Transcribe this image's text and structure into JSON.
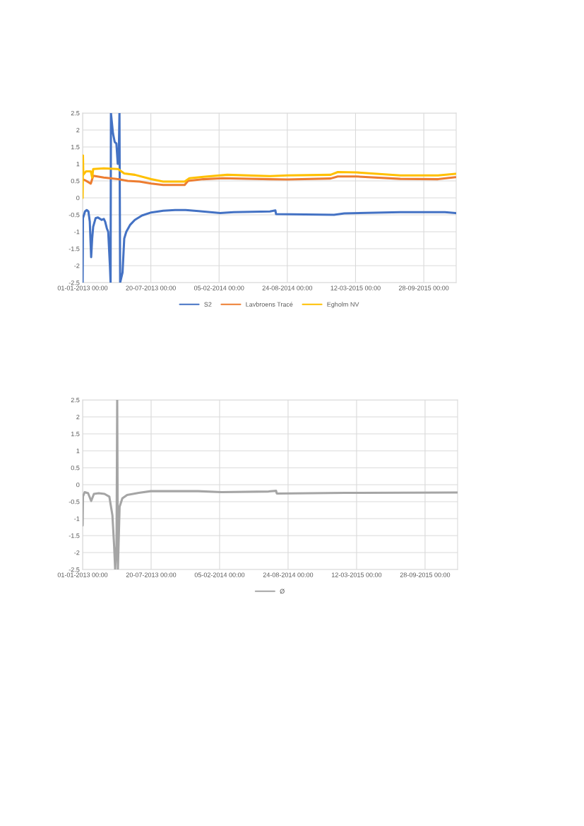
{
  "chart_data": [
    {
      "type": "line",
      "grid": true,
      "legend": "bottom",
      "line_style": "solid",
      "marker": "none",
      "xlim": [
        "2013-01-01",
        "2016-01-01"
      ],
      "xticks": [
        {
          "value": "2013-01-01",
          "label": "01-01-2013 00:00"
        },
        {
          "value": "2013-07-20",
          "label": "20-07-2013 00:00"
        },
        {
          "value": "2014-02-05",
          "label": "05-02-2014 00:00"
        },
        {
          "value": "2014-08-24",
          "label": "24-08-2014 00:00"
        },
        {
          "value": "2015-03-12",
          "label": "12-03-2015 00:00"
        },
        {
          "value": "2015-09-28",
          "label": "28-09-2015 00:00"
        }
      ],
      "ylim": [
        -2.5,
        2.5
      ],
      "yticks": [
        -2.5,
        -2,
        -1.5,
        -1,
        -0.5,
        0,
        0.5,
        1,
        1.5,
        2,
        2.5
      ],
      "series": [
        {
          "name": "S2",
          "color": "#4472c4",
          "x": [
            "2013-01-01",
            "2013-01-02",
            "2013-01-08",
            "2013-01-13",
            "2013-01-18",
            "2013-01-22",
            "2013-01-26",
            "2013-01-29",
            "2013-02-01",
            "2013-02-08",
            "2013-02-15",
            "2013-02-26",
            "2013-03-04",
            "2013-03-08",
            "2013-03-13",
            "2013-03-17",
            "2013-03-22",
            "2013-03-24",
            "2013-03-25",
            "2013-03-27",
            "2013-03-31",
            "2013-04-05",
            "2013-04-10",
            "2013-04-14",
            "2013-04-17",
            "2013-04-19",
            "2013-04-21",
            "2013-04-28",
            "2013-05-03",
            "2013-05-09",
            "2013-05-20",
            "2013-06-03",
            "2013-06-24",
            "2013-07-21",
            "2013-08-25",
            "2013-09-29",
            "2013-10-30",
            "2013-12-07",
            "2014-02-08",
            "2014-03-20",
            "2014-07-04",
            "2014-07-20",
            "2014-07-22",
            "2015-01-08",
            "2015-02-07",
            "2015-07-21",
            "2015-11-29",
            "2015-12-30"
          ],
          "values": [
            -2.5,
            -0.6,
            -0.4,
            -0.36,
            -0.4,
            -0.7,
            -1.75,
            -1.2,
            -0.85,
            -0.6,
            -0.58,
            -0.65,
            -0.62,
            -0.7,
            -0.9,
            -1.0,
            -2.0,
            -2.5,
            2.5,
            2.3,
            1.9,
            1.65,
            1.6,
            1.0,
            1.3,
            2.5,
            -2.5,
            -2.2,
            -1.2,
            -1.0,
            -0.8,
            -0.65,
            -0.52,
            -0.43,
            -0.38,
            -0.36,
            -0.36,
            -0.39,
            -0.45,
            -0.42,
            -0.4,
            -0.37,
            -0.48,
            -0.5,
            -0.46,
            -0.42,
            -0.42,
            -0.45
          ]
        },
        {
          "name": "Lavbroens Tracé",
          "color": "#ed7d31",
          "x": [
            "2013-01-01",
            "2013-01-08",
            "2013-01-25",
            "2013-02-01",
            "2013-03-04",
            "2013-04-15",
            "2013-05-13",
            "2013-06-17",
            "2013-07-21",
            "2013-08-25",
            "2013-10-27",
            "2013-11-06",
            "2013-12-21",
            "2014-02-15",
            "2014-07-04",
            "2014-08-24",
            "2014-12-29",
            "2015-01-19",
            "2015-03-15",
            "2015-07-21",
            "2015-11-09",
            "2015-12-30"
          ],
          "values": [
            0.55,
            0.52,
            0.42,
            0.65,
            0.6,
            0.55,
            0.5,
            0.48,
            0.42,
            0.38,
            0.38,
            0.5,
            0.55,
            0.58,
            0.55,
            0.54,
            0.57,
            0.63,
            0.63,
            0.56,
            0.55,
            0.61
          ]
        },
        {
          "name": "Egholm NV",
          "color": "#ffc000",
          "x": [
            "2013-01-01",
            "2013-01-02",
            "2013-01-03",
            "2013-01-11",
            "2013-01-25",
            "2013-01-29",
            "2013-02-01",
            "2013-03-04",
            "2013-04-15",
            "2013-05-03",
            "2013-06-03",
            "2013-07-21",
            "2013-08-25",
            "2013-10-27",
            "2013-11-10",
            "2013-12-21",
            "2014-03-01",
            "2014-07-04",
            "2014-08-24",
            "2014-12-29",
            "2015-01-19",
            "2015-03-15",
            "2015-07-21",
            "2015-11-09",
            "2015-12-30"
          ],
          "values": [
            0,
            1.25,
            0.68,
            0.78,
            0.78,
            0.6,
            0.85,
            0.87,
            0.85,
            0.72,
            0.68,
            0.55,
            0.48,
            0.48,
            0.58,
            0.62,
            0.68,
            0.64,
            0.66,
            0.68,
            0.76,
            0.75,
            0.66,
            0.66,
            0.71
          ]
        }
      ]
    },
    {
      "type": "line",
      "grid": true,
      "legend": "bottom",
      "line_style": "solid",
      "marker": "none",
      "xlim": [
        "2013-01-01",
        "2016-01-01"
      ],
      "xticks": [
        {
          "value": "2013-01-01",
          "label": "01-01-2013 00:00"
        },
        {
          "value": "2013-07-20",
          "label": "20-07-2013 00:00"
        },
        {
          "value": "2014-02-05",
          "label": "05-02-2014 00:00"
        },
        {
          "value": "2014-08-24",
          "label": "24-08-2014 00:00"
        },
        {
          "value": "2015-03-12",
          "label": "12-03-2015 00:00"
        },
        {
          "value": "2015-09-28",
          "label": "28-09-2015 00:00"
        }
      ],
      "ylim": [
        -2.5,
        2.5
      ],
      "yticks": [
        -2.5,
        -2,
        -1.5,
        -1,
        -0.5,
        0,
        0.5,
        1,
        1.5,
        2,
        2.5
      ],
      "series": [
        {
          "name": "Ø",
          "color": "#a5a5a5",
          "x": [
            "2013-01-01",
            "2013-01-02",
            "2013-01-07",
            "2013-01-17",
            "2013-01-26",
            "2013-02-03",
            "2013-02-17",
            "2013-03-06",
            "2013-03-20",
            "2013-03-29",
            "2013-04-03",
            "2013-04-06",
            "2013-04-10",
            "2013-04-12",
            "2013-04-14",
            "2013-04-19",
            "2013-04-27",
            "2013-05-11",
            "2013-06-14",
            "2013-07-19",
            "2013-12-04",
            "2014-02-11",
            "2014-06-28",
            "2014-07-20",
            "2014-07-22",
            "2015-02-07",
            "2016-01-01"
          ],
          "values": [
            -1.2,
            -0.35,
            -0.22,
            -0.25,
            -0.48,
            -0.27,
            -0.25,
            -0.27,
            -0.35,
            -0.9,
            -1.8,
            -2.5,
            -1.8,
            2.5,
            -2.5,
            -0.65,
            -0.4,
            -0.3,
            -0.24,
            -0.19,
            -0.19,
            -0.22,
            -0.2,
            -0.18,
            -0.26,
            -0.24,
            -0.23
          ]
        }
      ]
    }
  ]
}
